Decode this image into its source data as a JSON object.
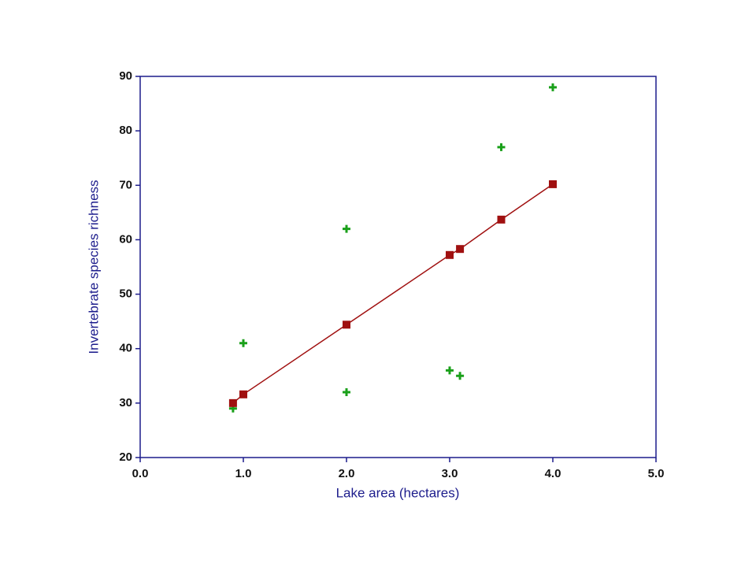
{
  "chart_data": {
    "type": "scatter",
    "xlabel": "Lake area (hectares)",
    "ylabel": "Invertebrate species richness",
    "xlim": [
      0,
      5
    ],
    "ylim": [
      20,
      90
    ],
    "xticks": [
      {
        "value": 0,
        "label": "0.0"
      },
      {
        "value": 1,
        "label": "1.0"
      },
      {
        "value": 2,
        "label": "2.0"
      },
      {
        "value": 3,
        "label": "3.0"
      },
      {
        "value": 4,
        "label": "4.0"
      },
      {
        "value": 5,
        "label": "5.0"
      }
    ],
    "yticks": [
      20,
      30,
      40,
      50,
      60,
      70,
      80,
      90
    ],
    "series": [
      {
        "color": "#1aa01a",
        "marker": "plus",
        "line": false,
        "x": [
          0.9,
          1.0,
          2.0,
          2.0,
          3.0,
          3.1,
          3.5,
          4.0
        ],
        "values": [
          29,
          41,
          62,
          32,
          36,
          35,
          77,
          88
        ]
      },
      {
        "color": "#a01010",
        "marker": "square",
        "line": true,
        "x": [
          0.9,
          1.0,
          2.0,
          3.0,
          3.1,
          3.5,
          4.0
        ],
        "values": [
          30,
          31.6,
          44.4,
          57.2,
          58.3,
          63.7,
          70.2
        ]
      }
    ]
  }
}
